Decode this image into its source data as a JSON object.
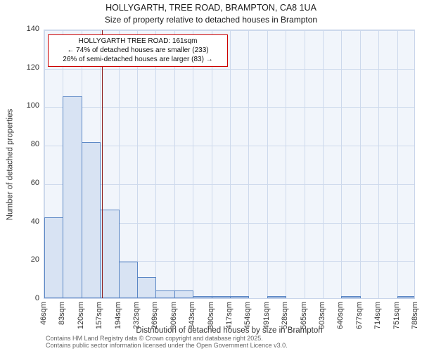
{
  "title": "HOLLYGARTH, TREE ROAD, BRAMPTON, CA8 1UA",
  "subtitle": "Size of property relative to detached houses in Brampton",
  "chart_data": {
    "type": "bar",
    "categories": [
      "46sqm",
      "83sqm",
      "120sqm",
      "157sqm",
      "194sqm",
      "232sqm",
      "269sqm",
      "306sqm",
      "343sqm",
      "380sqm",
      "417sqm",
      "454sqm",
      "491sqm",
      "528sqm",
      "565sqm",
      "603sqm",
      "640sqm",
      "677sqm",
      "714sqm",
      "751sqm",
      "788sqm"
    ],
    "values": [
      42,
      105,
      81,
      46,
      19,
      11,
      4,
      4,
      1,
      1,
      1,
      0,
      1,
      0,
      0,
      0,
      1,
      0,
      0,
      1
    ],
    "xlabel": "Distribution of detached houses by size in Brampton",
    "ylabel": "Number of detached properties",
    "ylim": [
      0,
      140
    ],
    "yticks": [
      0,
      20,
      40,
      60,
      80,
      100,
      120,
      140
    ],
    "grid": true,
    "bar_fill": "#d8e3f3",
    "bar_border": "#5b87c5",
    "marker": {
      "value_sqm": 161,
      "xmin_sqm": 46,
      "xmax_sqm": 788,
      "color": "#8b1a1a"
    },
    "annotation": {
      "line1": "HOLLYGARTH TREE ROAD: 161sqm",
      "line2": "← 74% of detached houses are smaller (233)",
      "line3": "26% of semi-detached houses are larger (83) →"
    }
  },
  "footer": {
    "line1": "Contains HM Land Registry data © Crown copyright and database right 2025.",
    "line2": "Contains public sector information licensed under the Open Government Licence v3.0."
  }
}
